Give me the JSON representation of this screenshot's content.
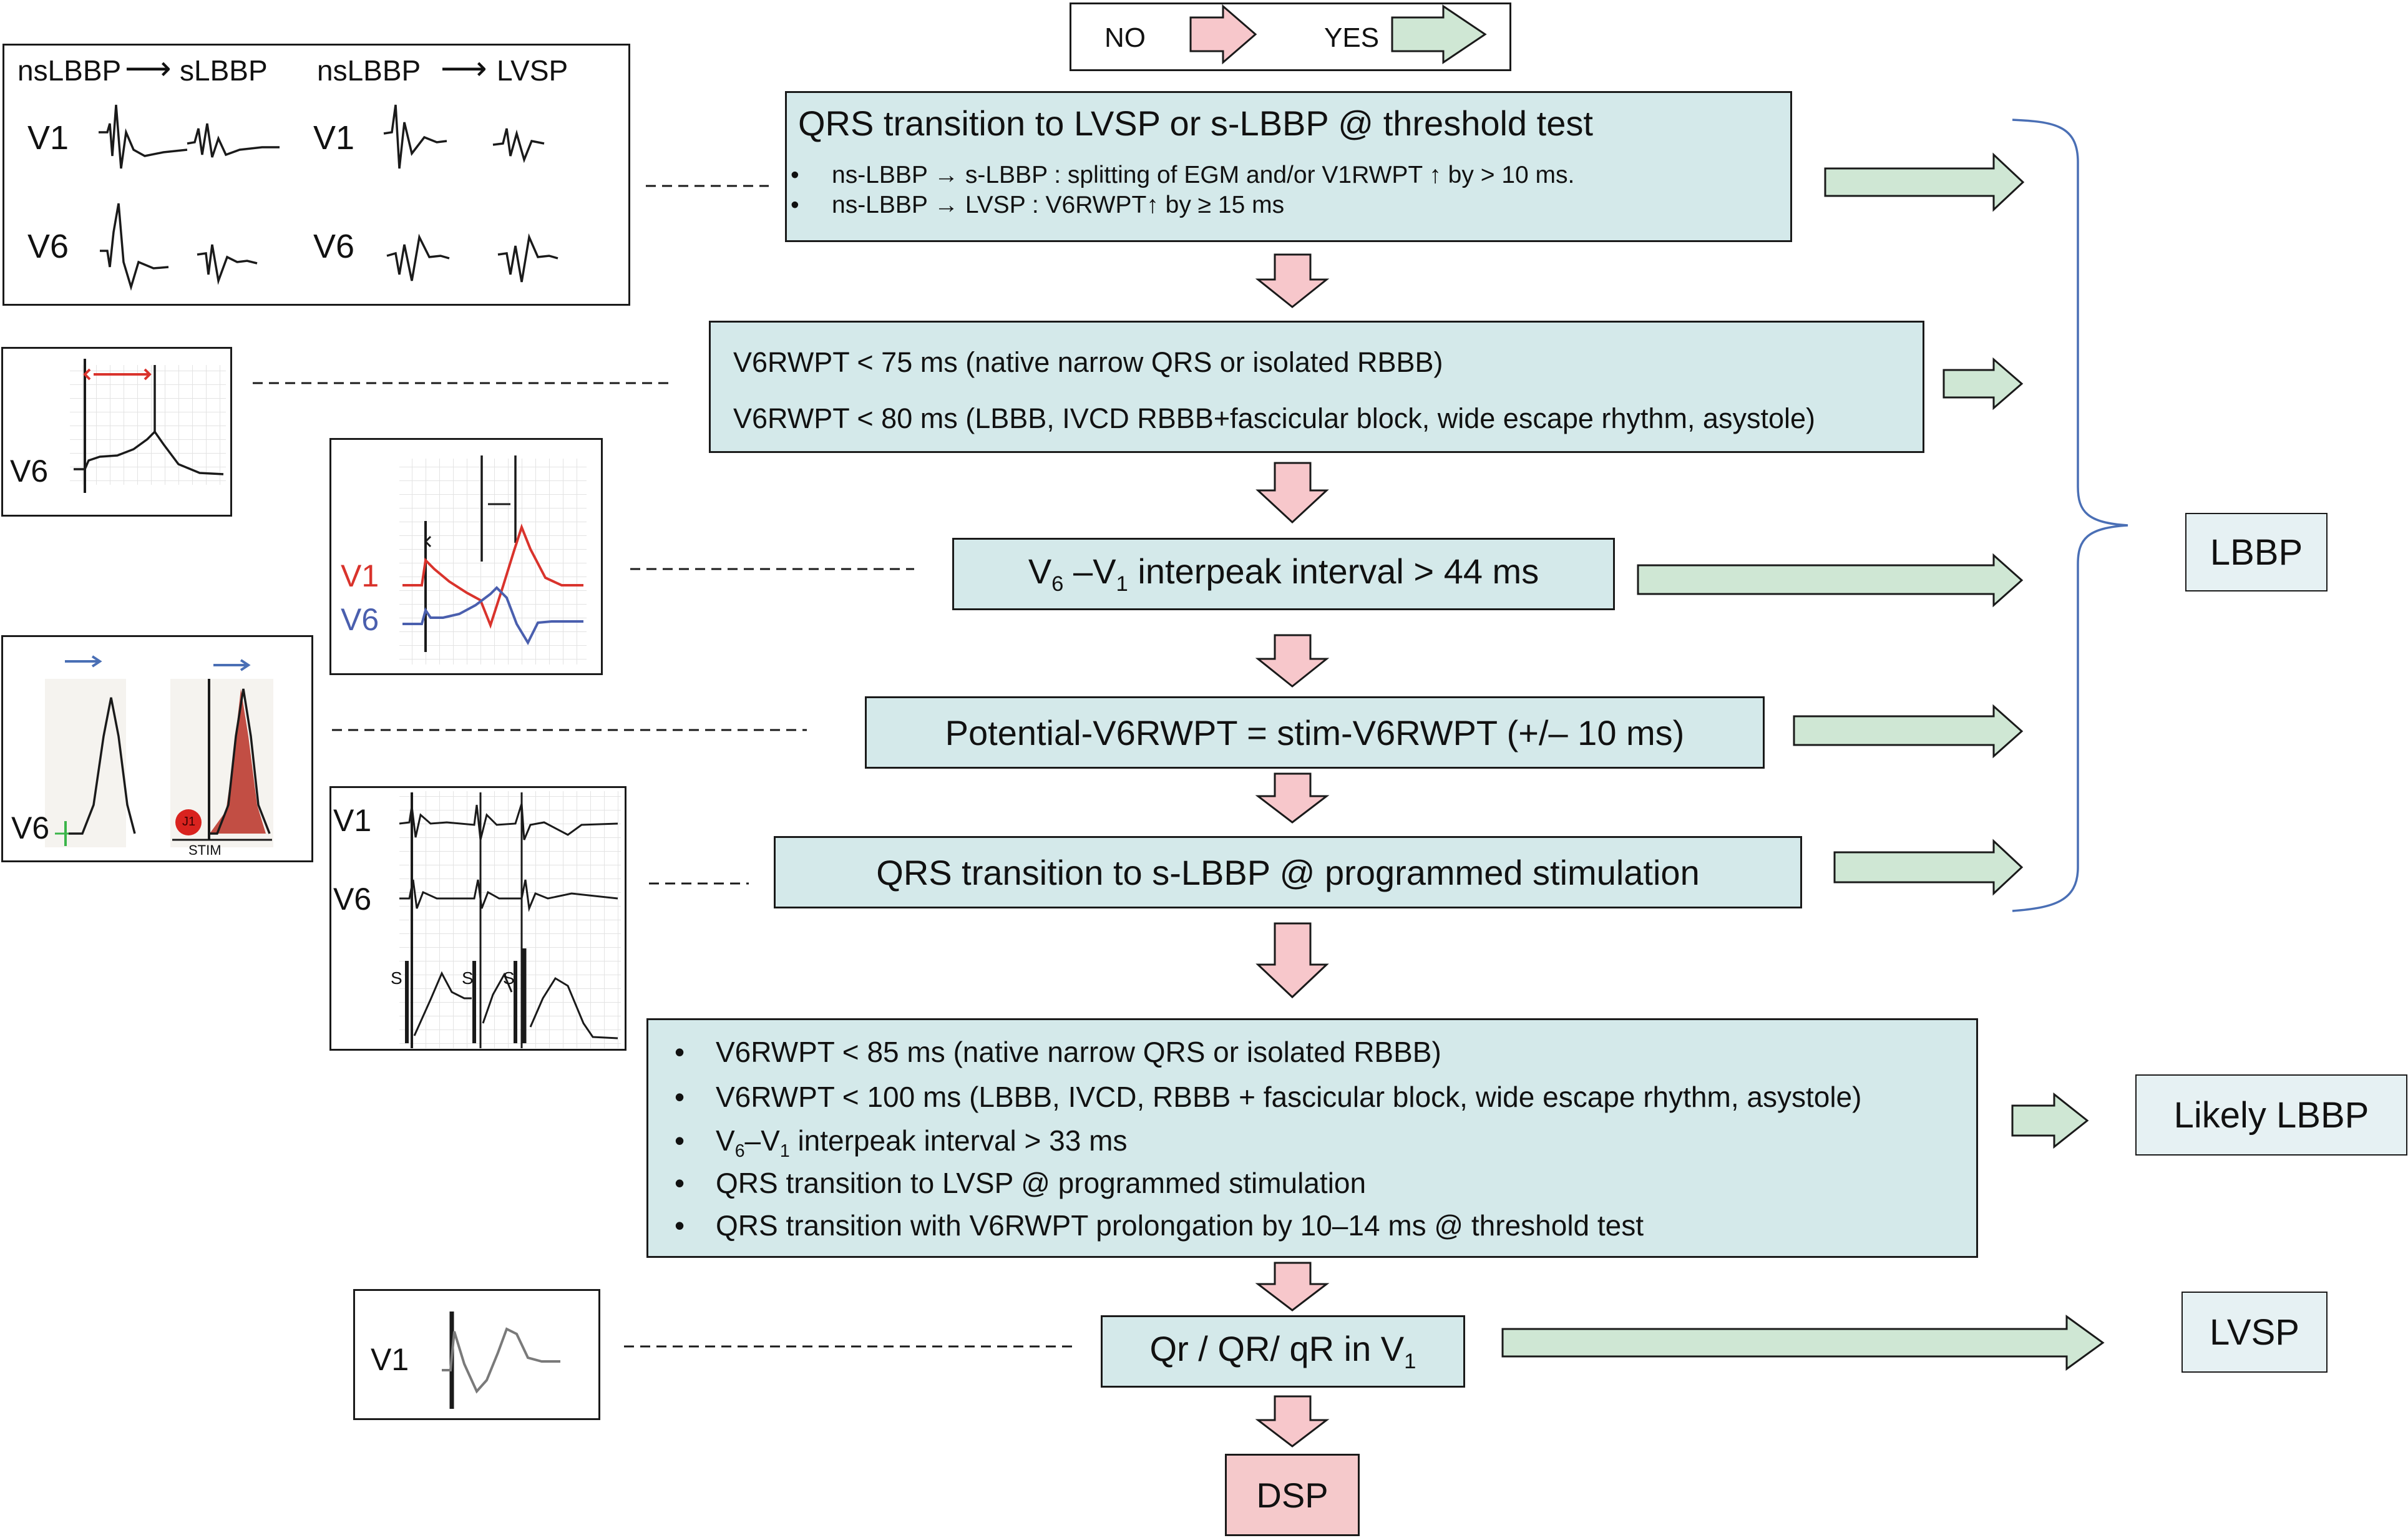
{
  "legend": {
    "no": "NO",
    "yes": "YES"
  },
  "box1": {
    "title": "QRS transition to LVSP or s-LBBP @ threshold test",
    "bullets": [
      "ns-LBBP → s-LBBP : splitting of EGM and/or V1RWPT ↑ by > 10 ms.",
      "ns-LBBP → LVSP : V6RWPT↑ by ≥ 15 ms"
    ]
  },
  "box2": {
    "lines": [
      "V6RWPT < 75 ms (native narrow QRS or isolated RBBB)",
      "V6RWPT < 80 ms (LBBB, IVCD RBBB+fascicular block, wide escape rhythm, asystole)"
    ]
  },
  "box3": {
    "lead_a": "V",
    "sub_a": "6",
    "mid": " –V",
    "sub_b": "1",
    "rest": " interpeak interval > 44 ms"
  },
  "box4": {
    "text": "Potential-V6RWPT = stim-V6RWPT (+/– 10 ms)"
  },
  "box5": {
    "text": "QRS transition to s-LBBP @ programmed stimulation"
  },
  "box6": {
    "bullets": [
      "V6RWPT < 85 ms (native narrow QRS or isolated RBBB)",
      "V6RWPT < 100 ms (LBBB, IVCD, RBBB + fascicular block, wide escape rhythm, asystole)",
      {
        "lead_a": "V",
        "sub_a": "6",
        "mid": "–V",
        "sub_b": "1",
        "rest": " interpeak interval > 33 ms"
      },
      "QRS transition to LVSP @ programmed stimulation",
      "QRS transition with V6RWPT prolongation by 10–14 ms @ threshold test"
    ]
  },
  "box7": {
    "text": "Qr / QR/ qR in V",
    "sub": "1"
  },
  "outcomes": {
    "lbbp": "LBBP",
    "likely": "Likely LBBP",
    "lvsp": "LVSP",
    "dsp": "DSP"
  },
  "ecg1": {
    "header_a": "nsLBBP",
    "header_b": "sLBBP",
    "header_c": "nsLBBP",
    "header_d": "LVSP",
    "lead_v1": "V1",
    "lead_v6": "V6"
  },
  "ecg2": {
    "lead": "V6"
  },
  "ecg3": {
    "lead_v1": "V1",
    "lead_v6": "V6"
  },
  "ecg4": {
    "lead": "V6",
    "stim": "STIM",
    "marker": "J1"
  },
  "ecg5": {
    "lead_v1": "V1",
    "lead_v6": "V6",
    "s1": "S",
    "s2": "S",
    "s3": "S"
  },
  "ecg6": {
    "lead": "V1"
  },
  "colors": {
    "box_fill": "#d4e9ea",
    "pink_arrow": "#f7c7cb",
    "green_arrow": "#cfe7d4",
    "dsp_fill": "#f5c9cb",
    "bracket": "#4a6fb5",
    "v1_red": "#d9332c",
    "v6_blue": "#4a5fae"
  }
}
